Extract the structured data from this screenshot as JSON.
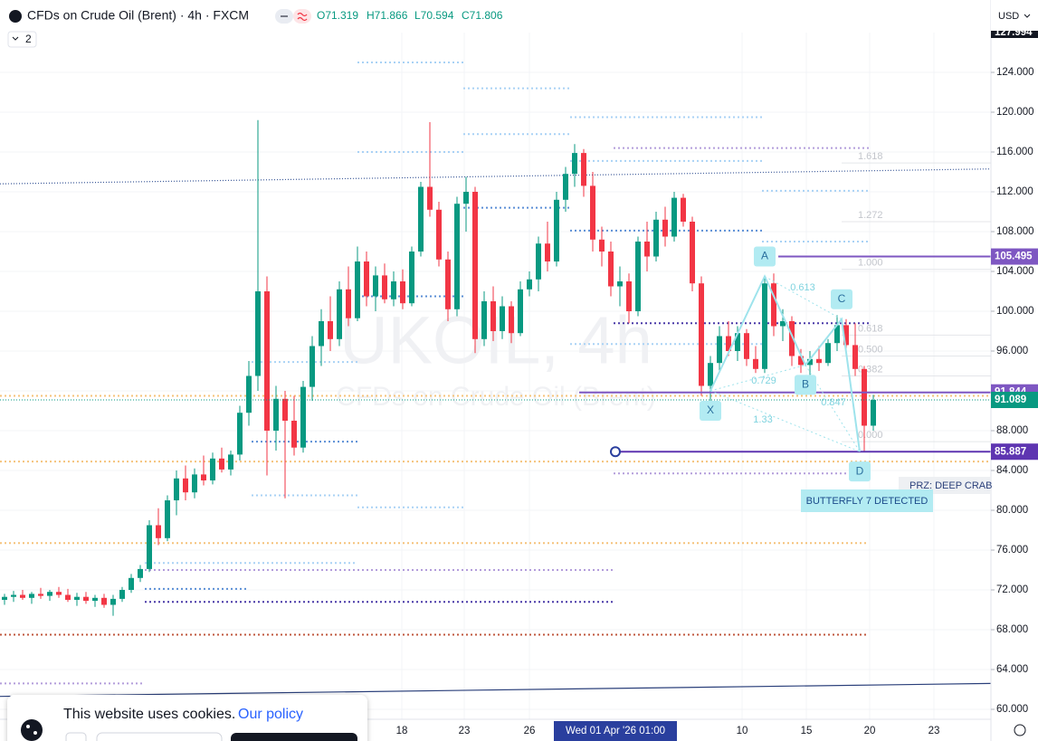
{
  "header": {
    "symbol": "CFDs on Crude Oil (Brent) · 4h · FXCM",
    "open": "O71.319",
    "high": "H71.866",
    "low": "L70.594",
    "close": "C71.806",
    "interval_badge": "2",
    "currency": "USD"
  },
  "chart_data": {
    "type": "candlestick",
    "watermark_symbol": "UKOIL, 4h",
    "watermark_name": "CFDs on Crude Oil (Brent)",
    "up_color": "#089981",
    "down_color": "#f23645",
    "xlim": [
      -0.5,
      109
    ],
    "ylim": [
      59,
      128
    ],
    "yticks": [
      {
        "value": 124,
        "label": "124.000"
      },
      {
        "value": 120,
        "label": "120.000"
      },
      {
        "value": 116,
        "label": "116.000"
      },
      {
        "value": 112,
        "label": "112.000"
      },
      {
        "value": 108,
        "label": "108.000"
      },
      {
        "value": 104,
        "label": "104.000"
      },
      {
        "value": 100,
        "label": "100.000"
      },
      {
        "value": 96,
        "label": "96.000"
      },
      {
        "value": 92,
        "label": "92.000"
      },
      {
        "value": 88,
        "label": "88.000"
      },
      {
        "value": 84,
        "label": "84.000"
      },
      {
        "value": 80,
        "label": "80.000"
      },
      {
        "value": 76,
        "label": "76.000"
      },
      {
        "value": 72,
        "label": "72.000"
      },
      {
        "value": 68,
        "label": "68.000"
      },
      {
        "value": 64,
        "label": "64.000"
      },
      {
        "value": 60,
        "label": "60.000"
      }
    ],
    "xticks": [
      {
        "value": 43.9,
        "label": "18"
      },
      {
        "value": 50.8,
        "label": "23"
      },
      {
        "value": 58,
        "label": "26"
      },
      {
        "value": 81.5,
        "label": "10"
      },
      {
        "value": 88.6,
        "label": "15"
      },
      {
        "value": 95.6,
        "label": "20"
      },
      {
        "value": 102.7,
        "label": "23"
      }
    ],
    "crosshair_x": {
      "value": 67.5,
      "label": "Wed 01 Apr '26   01:00"
    },
    "candles": [
      [
        71.0,
        71.6,
        70.5,
        71.3
      ],
      [
        71.3,
        71.9,
        70.8,
        71.5
      ],
      [
        71.5,
        72.0,
        71.0,
        71.2
      ],
      [
        71.2,
        71.8,
        70.6,
        71.6
      ],
      [
        71.6,
        72.2,
        71.1,
        71.4
      ],
      [
        71.4,
        72.0,
        70.9,
        71.8
      ],
      [
        71.8,
        72.3,
        71.2,
        71.5
      ],
      [
        71.5,
        72.1,
        70.8,
        71.0
      ],
      [
        71.0,
        71.7,
        70.4,
        71.3
      ],
      [
        71.3,
        71.8,
        70.6,
        70.9
      ],
      [
        70.9,
        71.5,
        70.3,
        71.2
      ],
      [
        71.2,
        71.6,
        70.2,
        70.5
      ],
      [
        70.5,
        71.5,
        69.4,
        71.1
      ],
      [
        71.1,
        72.3,
        70.8,
        72.0
      ],
      [
        72.0,
        73.6,
        71.7,
        73.2
      ],
      [
        73.2,
        74.5,
        72.8,
        74.1
      ],
      [
        74.1,
        79.0,
        73.8,
        78.5
      ],
      [
        78.5,
        80.2,
        76.5,
        77.2
      ],
      [
        77.2,
        81.5,
        76.9,
        81.0
      ],
      [
        81.0,
        84.0,
        79.5,
        83.2
      ],
      [
        83.2,
        84.5,
        81.0,
        81.8
      ],
      [
        81.8,
        84.2,
        81.2,
        83.6
      ],
      [
        83.6,
        85.5,
        82.5,
        83.0
      ],
      [
        83.0,
        85.8,
        82.6,
        85.2
      ],
      [
        85.2,
        86.3,
        83.8,
        84.1
      ],
      [
        84.1,
        86.0,
        83.5,
        85.6
      ],
      [
        85.6,
        90.5,
        85.0,
        89.8
      ],
      [
        89.8,
        95.0,
        88.5,
        93.5
      ],
      [
        93.5,
        119.2,
        92.0,
        102.0
      ],
      [
        102.0,
        103.5,
        83.5,
        88.0
      ],
      [
        88.0,
        92.5,
        86.0,
        91.2
      ],
      [
        91.2,
        92.0,
        81.2,
        89.0
      ],
      [
        89.0,
        91.5,
        85.5,
        86.3
      ],
      [
        86.3,
        93.0,
        85.8,
        92.4
      ],
      [
        92.4,
        97.5,
        91.0,
        96.5
      ],
      [
        96.5,
        100.2,
        94.5,
        99.0
      ],
      [
        99.0,
        101.5,
        96.0,
        97.2
      ],
      [
        97.2,
        103.0,
        96.5,
        102.2
      ],
      [
        102.2,
        104.5,
        98.5,
        99.3
      ],
      [
        99.3,
        106.5,
        99.0,
        105.0
      ],
      [
        105.0,
        106.0,
        100.5,
        101.5
      ],
      [
        101.5,
        104.5,
        100.0,
        103.6
      ],
      [
        103.6,
        104.8,
        100.8,
        101.2
      ],
      [
        101.2,
        104.0,
        100.5,
        103.0
      ],
      [
        103.0,
        104.2,
        100.2,
        100.8
      ],
      [
        100.8,
        106.5,
        100.5,
        106.0
      ],
      [
        106.0,
        113.0,
        105.5,
        112.5
      ],
      [
        112.5,
        119.0,
        109.5,
        110.2
      ],
      [
        110.2,
        111.0,
        104.5,
        105.2
      ],
      [
        105.2,
        106.0,
        99.0,
        100.2
      ],
      [
        100.2,
        111.5,
        99.5,
        110.8
      ],
      [
        110.8,
        113.5,
        108.0,
        112.0
      ],
      [
        112.0,
        112.5,
        95.8,
        97.2
      ],
      [
        97.2,
        102.0,
        96.5,
        101.0
      ],
      [
        101.0,
        102.5,
        97.0,
        98.0
      ],
      [
        98.0,
        101.5,
        97.2,
        100.5
      ],
      [
        100.5,
        101.0,
        96.8,
        97.8
      ],
      [
        97.8,
        103.0,
        97.5,
        102.2
      ],
      [
        102.2,
        104.0,
        101.5,
        103.2
      ],
      [
        103.2,
        107.5,
        102.0,
        106.8
      ],
      [
        106.8,
        109.0,
        104.0,
        105.0
      ],
      [
        105.0,
        112.0,
        104.5,
        111.2
      ],
      [
        111.2,
        114.5,
        110.0,
        113.8
      ],
      [
        113.8,
        116.8,
        112.5,
        115.9
      ],
      [
        115.9,
        116.3,
        111.5,
        112.6
      ],
      [
        112.6,
        114.0,
        106.0,
        107.2
      ],
      [
        107.2,
        108.5,
        104.5,
        106.0
      ],
      [
        106.0,
        107.0,
        101.5,
        102.5
      ],
      [
        102.5,
        104.5,
        100.5,
        103.0
      ],
      [
        103.0,
        103.8,
        98.8,
        100.0
      ],
      [
        100.0,
        107.5,
        99.5,
        107.0
      ],
      [
        107.0,
        109.0,
        104.0,
        105.5
      ],
      [
        105.5,
        110.0,
        105.0,
        109.2
      ],
      [
        109.2,
        110.5,
        106.5,
        107.5
      ],
      [
        107.5,
        112.0,
        107.0,
        111.4
      ],
      [
        111.4,
        111.8,
        108.5,
        109.0
      ],
      [
        109.0,
        109.5,
        102.0,
        102.8
      ],
      [
        102.8,
        103.5,
        91.5,
        92.5
      ],
      [
        92.5,
        95.5,
        91.0,
        94.8
      ],
      [
        94.8,
        98.5,
        94.0,
        97.5
      ],
      [
        97.5,
        99.0,
        95.5,
        96.0
      ],
      [
        96.0,
        98.5,
        95.0,
        97.8
      ],
      [
        97.8,
        98.2,
        94.5,
        95.2
      ],
      [
        95.2,
        96.5,
        93.8,
        94.2
      ],
      [
        94.2,
        103.5,
        93.8,
        102.8
      ],
      [
        102.8,
        103.8,
        97.5,
        98.5
      ],
      [
        98.5,
        100.2,
        97.0,
        99.0
      ],
      [
        99.0,
        99.5,
        94.5,
        95.5
      ],
      [
        95.5,
        96.2,
        93.8,
        94.6
      ],
      [
        94.6,
        96.0,
        93.6,
        95.2
      ],
      [
        95.2,
        96.5,
        94.0,
        94.8
      ],
      [
        94.8,
        97.2,
        94.5,
        96.8
      ],
      [
        96.8,
        99.6,
        96.0,
        98.6
      ],
      [
        98.6,
        99.2,
        95.8,
        96.6
      ],
      [
        96.6,
        98.8,
        93.5,
        94.2
      ],
      [
        94.2,
        94.5,
        85.9,
        88.5
      ],
      [
        88.5,
        91.6,
        88.0,
        91.089
      ]
    ],
    "levels": [
      {
        "price": 125.0,
        "from": 39,
        "to": 50.7,
        "color": "#a9d2f5"
      },
      {
        "price": 122.4,
        "from": 50.7,
        "to": 62.5,
        "color": "#a9d2f5"
      },
      {
        "price": 119.5,
        "from": 62.5,
        "to": 83.7,
        "color": "#a9d2f5"
      },
      {
        "price": 117.8,
        "from": 50.7,
        "to": 62.5,
        "color": "#a9d2f5"
      },
      {
        "price": 116.4,
        "from": 67.3,
        "to": 95.5,
        "color": "#b39ddb"
      },
      {
        "price": 116.0,
        "from": 39,
        "to": 50.7,
        "color": "#a9d2f5"
      },
      {
        "price": 115.1,
        "from": 62.5,
        "to": 83.7,
        "color": "#a9d2f5"
      },
      {
        "price": 112.1,
        "from": 83.7,
        "to": 95.5,
        "color": "#a9d2f5"
      },
      {
        "price": 110.4,
        "from": 50.7,
        "to": 62.5,
        "color": "#5c8fd6"
      },
      {
        "price": 108.1,
        "from": 62.5,
        "to": 83.7,
        "color": "#5c8fd6"
      },
      {
        "price": 107.0,
        "from": 83.7,
        "to": 95.5,
        "color": "#a9d2f5"
      },
      {
        "price": 101.5,
        "from": 39,
        "to": 50.7,
        "color": "#5c8fd6"
      },
      {
        "price": 98.8,
        "from": 67.3,
        "to": 95.5,
        "color": "#4a3aa8"
      },
      {
        "price": 96.7,
        "from": 62.5,
        "to": 83.7,
        "color": "#a9d2f5"
      },
      {
        "price": 94.9,
        "from": 27.3,
        "to": 39,
        "color": "#a9d2f5"
      },
      {
        "price": 91.5,
        "from": -0.5,
        "to": 109,
        "color": "#f5c27a"
      },
      {
        "price": 86.9,
        "from": 27.3,
        "to": 39,
        "color": "#5c8fd6"
      },
      {
        "price": 84.9,
        "from": -0.5,
        "to": 109,
        "color": "#f5c27a"
      },
      {
        "price": 83.7,
        "from": 67.3,
        "to": 95.5,
        "color": "#b39ddb"
      },
      {
        "price": 81.5,
        "from": 27.3,
        "to": 39,
        "color": "#a9d2f5"
      },
      {
        "price": 80.3,
        "from": 39,
        "to": 50.7,
        "color": "#a9d2f5"
      },
      {
        "price": 76.7,
        "from": -0.5,
        "to": 95.5,
        "color": "#f5c27a"
      },
      {
        "price": 74.7,
        "from": 15.5,
        "to": 39,
        "color": "#a9d2f5"
      },
      {
        "price": 74.0,
        "from": 15.5,
        "to": 67.3,
        "color": "#b39ddb"
      },
      {
        "price": 72.1,
        "from": 15.5,
        "to": 27,
        "color": "#5c8fd6"
      },
      {
        "price": 70.8,
        "from": 15.5,
        "to": 67.3,
        "color": "#4a3aa8"
      },
      {
        "price": 67.5,
        "from": -0.5,
        "to": 95.5,
        "color": "#c0583f"
      },
      {
        "price": 62.6,
        "from": -0.5,
        "to": 15.5,
        "color": "#b39ddb"
      }
    ],
    "trendlines": [
      {
        "x": [
          -0.5,
          109
        ],
        "y": [
          112.8,
          114.3
        ],
        "color": "#3d5a99"
      },
      {
        "x": [
          -0.5,
          109
        ],
        "y": [
          61.3,
          62.6
        ],
        "color": "#2a3f7a"
      }
    ],
    "horizontal_lines": [
      {
        "price": 105.495,
        "from": 85.5,
        "color": "#7e57c2"
      },
      {
        "price": 91.844,
        "from": 63.5,
        "color": "#7e57c2"
      },
      {
        "price": 85.887,
        "from": 67.5,
        "color": "#5e35b1"
      }
    ],
    "last_price": 91.089,
    "last_color": "#089981",
    "top_price": 127.994,
    "fib_levels": [
      {
        "label": "1.618",
        "price": 114.9
      },
      {
        "label": "1.272",
        "price": 109.0
      },
      {
        "label": "1.000",
        "price": 104.2
      },
      {
        "label": "0.618",
        "price": 97.6
      },
      {
        "label": "0.500",
        "price": 95.5
      },
      {
        "label": "0.382",
        "price": 93.5
      },
      {
        "label": "0.000",
        "price": 86.9
      }
    ],
    "pattern": {
      "color": "#9ee3ec",
      "points": [
        {
          "label": "X",
          "x": 78,
          "y": 92.0
        },
        {
          "label": "A",
          "x": 84,
          "y": 103.5
        },
        {
          "label": "B",
          "x": 88.5,
          "y": 94.6
        },
        {
          "label": "C",
          "x": 92.5,
          "y": 99.2
        },
        {
          "label": "D",
          "x": 94.5,
          "y": 85.9
        }
      ],
      "ratios": [
        "0.613",
        "0.729",
        "1.33",
        "0.847"
      ]
    },
    "annotations": {
      "prz": "PRZ: DEEP CRAB",
      "detected": "BUTTERFLY 7 DETECTED"
    }
  },
  "cookie_banner": {
    "text": "This website uses cookies.",
    "link": "Our policy"
  }
}
